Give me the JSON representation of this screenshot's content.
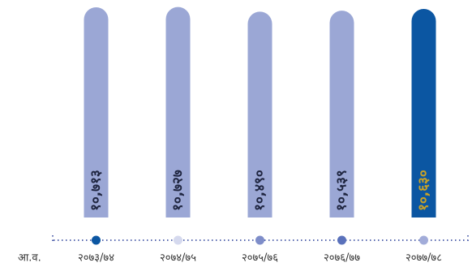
{
  "chart_data": {
    "type": "bar",
    "x_label": "आ.व.",
    "categories": [
      "२०७३/७४",
      "२०७४/७५",
      "२०७५/७६",
      "२०७६/७७",
      "२०७७/७८"
    ],
    "values": [
      10713,
      10727,
      10490,
      10539,
      10630
    ],
    "value_labels": [
      "१०,७१३",
      "१०,७२७",
      "१०,४९०",
      "१०,५३९",
      "१०,६३०"
    ],
    "colors": [
      "#9ba7d5",
      "#9ba7d5",
      "#9ba7d5",
      "#9ba7d5",
      "#0b56a2"
    ],
    "label_colors": [
      "#1f2540",
      "#1f2540",
      "#1f2540",
      "#1f2540",
      "#c9a227"
    ],
    "marker_colors": [
      "#0b56a2",
      "#d5d9ee",
      "#7e8dc9",
      "#5a71bb",
      "#a2acd9"
    ],
    "ylim": [
      0,
      11000
    ]
  }
}
